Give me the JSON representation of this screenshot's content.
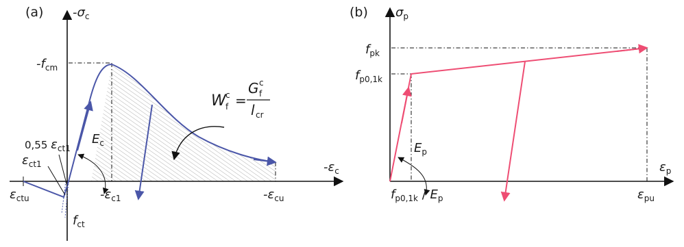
{
  "panel_a": {
    "tag": "(a)",
    "y_axis": {
      "sign": "-",
      "sym": "σ",
      "sub": "c"
    },
    "x_axis": {
      "sign": "-",
      "sym": "ε",
      "sub": "c"
    },
    "fcm": {
      "sign": "-",
      "sym": "f",
      "sub": "cm"
    },
    "fct": {
      "sym": "f",
      "sub": "ct"
    },
    "ec1": {
      "sign": "-",
      "sym": "ε",
      "sub": "c1"
    },
    "ecu": {
      "sign": "-",
      "sym": "ε",
      "sub": "cu"
    },
    "ectu": {
      "sym": "ε",
      "sub": "ctu"
    },
    "ect1": {
      "sym": "ε",
      "sub": "ct1"
    },
    "ect1_frac": {
      "prefix": "0,55 ",
      "sym": "ε",
      "sub": "ct1"
    },
    "Ec": {
      "sym": "E",
      "sub": "c"
    },
    "formula": {
      "lhs_sym": "W",
      "lhs_sub": "f",
      "lhs_sup": "c",
      "eq": "=",
      "num_sym": "G",
      "num_sub": "f",
      "num_sup": "c",
      "den_sym": "l",
      "den_sub": "cr"
    }
  },
  "panel_b": {
    "tag": "(b)",
    "y_axis": {
      "sym": "σ",
      "sub": "p"
    },
    "x_axis": {
      "sym": "ε",
      "sub": "p"
    },
    "fpk": {
      "sym": "f",
      "sub": "pk"
    },
    "fp01k": {
      "sym": "f",
      "sub": "p0,1k"
    },
    "fp01k_over_Ep": {
      "sym": "f",
      "sub": "p0,1k",
      "slash": " / ",
      "sym2": "E",
      "sub2": "p"
    },
    "epu": {
      "sym": "ε",
      "sub": "pu"
    },
    "Ep": {
      "sym": "E",
      "sub": "p"
    }
  },
  "colors": {
    "concrete_curve": "#4a56a8",
    "steel_curve": "#ee4d73",
    "hatch": "#b5b5b5"
  }
}
